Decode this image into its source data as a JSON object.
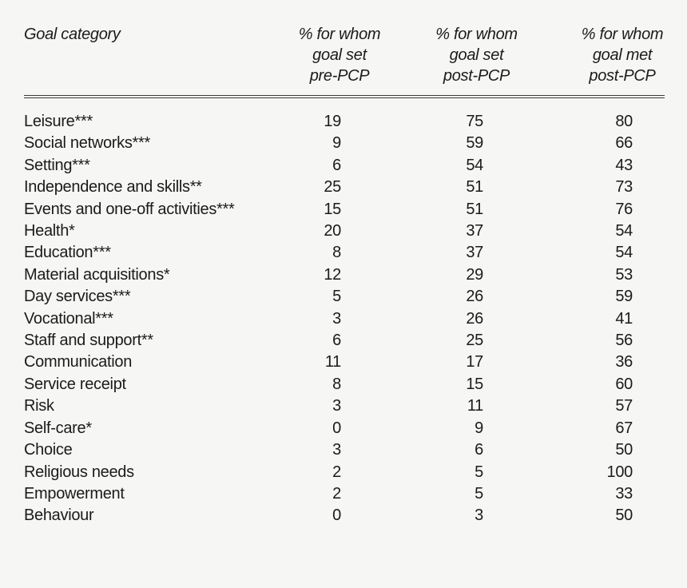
{
  "colors": {
    "background": "#f6f6f4",
    "text": "#1b1b1b",
    "header_rule": "#3a3a3a"
  },
  "table": {
    "columns": {
      "category": {
        "label": "Goal category"
      },
      "pre_pcp_set": {
        "lines": [
          "% for whom",
          "goal set",
          "pre-PCP"
        ]
      },
      "post_pcp_set": {
        "lines": [
          "% for whom",
          "goal set",
          "post-PCP"
        ]
      },
      "post_pcp_met": {
        "lines": [
          "% for whom",
          "goal met",
          "post-PCP"
        ]
      }
    },
    "rows": [
      {
        "category": "Leisure***",
        "pre_pcp_set": 19,
        "post_pcp_set": 75,
        "post_pcp_met": 80
      },
      {
        "category": "Social networks***",
        "pre_pcp_set": 9,
        "post_pcp_set": 59,
        "post_pcp_met": 66
      },
      {
        "category": "Setting***",
        "pre_pcp_set": 6,
        "post_pcp_set": 54,
        "post_pcp_met": 43
      },
      {
        "category": "Independence and skills**",
        "pre_pcp_set": 25,
        "post_pcp_set": 51,
        "post_pcp_met": 73
      },
      {
        "category": "Events and one-off activities***",
        "pre_pcp_set": 15,
        "post_pcp_set": 51,
        "post_pcp_met": 76
      },
      {
        "category": "Health*",
        "pre_pcp_set": 20,
        "post_pcp_set": 37,
        "post_pcp_met": 54
      },
      {
        "category": "Education***",
        "pre_pcp_set": 8,
        "post_pcp_set": 37,
        "post_pcp_met": 54
      },
      {
        "category": "Material acquisitions*",
        "pre_pcp_set": 12,
        "post_pcp_set": 29,
        "post_pcp_met": 53
      },
      {
        "category": "Day services***",
        "pre_pcp_set": 5,
        "post_pcp_set": 26,
        "post_pcp_met": 59
      },
      {
        "category": "Vocational***",
        "pre_pcp_set": 3,
        "post_pcp_set": 26,
        "post_pcp_met": 41
      },
      {
        "category": "Staff and support**",
        "pre_pcp_set": 6,
        "post_pcp_set": 25,
        "post_pcp_met": 56
      },
      {
        "category": "Communication",
        "pre_pcp_set": 11,
        "post_pcp_set": 17,
        "post_pcp_met": 36
      },
      {
        "category": "Service receipt",
        "pre_pcp_set": 8,
        "post_pcp_set": 15,
        "post_pcp_met": 60
      },
      {
        "category": "Risk",
        "pre_pcp_set": 3,
        "post_pcp_set": 11,
        "post_pcp_met": 57
      },
      {
        "category": "Self-care*",
        "pre_pcp_set": 0,
        "post_pcp_set": 9,
        "post_pcp_met": 67
      },
      {
        "category": "Choice",
        "pre_pcp_set": 3,
        "post_pcp_set": 6,
        "post_pcp_met": 50
      },
      {
        "category": "Religious needs",
        "pre_pcp_set": 2,
        "post_pcp_set": 5,
        "post_pcp_met": 100
      },
      {
        "category": "Empowerment",
        "pre_pcp_set": 2,
        "post_pcp_set": 5,
        "post_pcp_met": 33
      },
      {
        "category": "Behaviour",
        "pre_pcp_set": 0,
        "post_pcp_set": 3,
        "post_pcp_met": 50
      }
    ]
  }
}
